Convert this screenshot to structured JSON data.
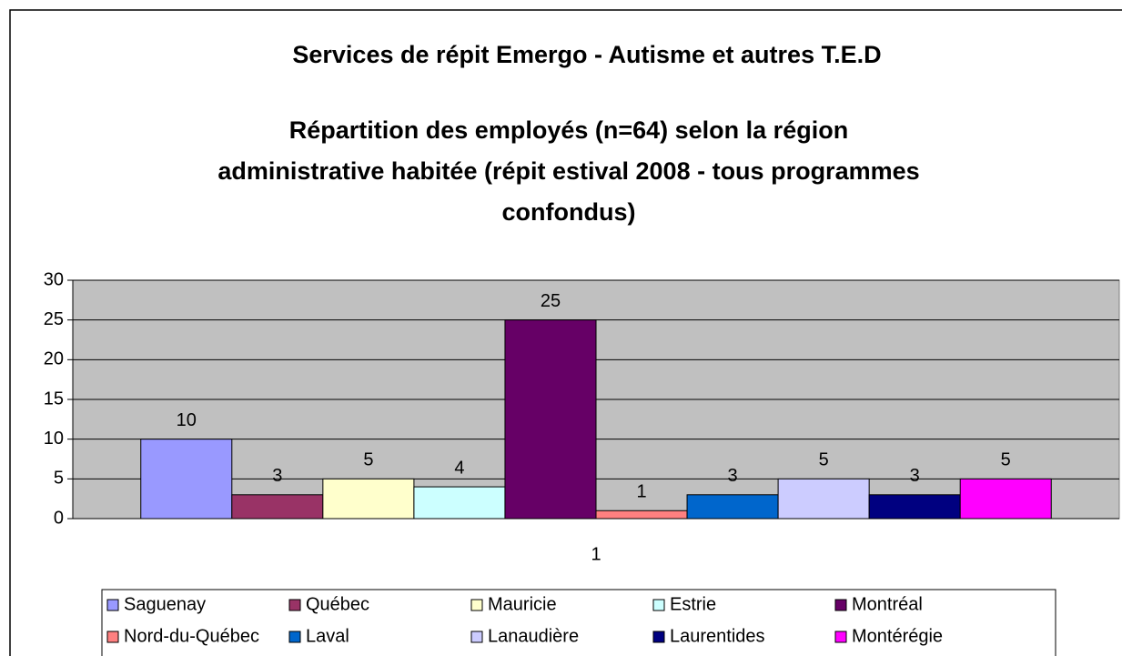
{
  "chart_data": {
    "type": "bar",
    "title": "Services de répit Emergo - Autisme et autres T.E.D",
    "subtitle": [
      "Répartition des employés (n=64) selon la région",
      "administrative habitée (répit estival 2008 - tous programmes",
      "confondus)"
    ],
    "categories": [
      "1"
    ],
    "series": [
      {
        "name": "Saguenay",
        "color": "#9999ff",
        "values": [
          10
        ]
      },
      {
        "name": "Québec",
        "color": "#993366",
        "values": [
          3
        ]
      },
      {
        "name": "Mauricie",
        "color": "#ffffcc",
        "values": [
          5
        ]
      },
      {
        "name": "Estrie",
        "color": "#ccffff",
        "values": [
          4
        ]
      },
      {
        "name": "Montréal",
        "color": "#660066",
        "values": [
          25
        ]
      },
      {
        "name": "Nord-du-Québec",
        "color": "#ff8080",
        "values": [
          1
        ]
      },
      {
        "name": "Laval",
        "color": "#0066cc",
        "values": [
          3
        ]
      },
      {
        "name": "Lanaudière",
        "color": "#ccccff",
        "values": [
          5
        ]
      },
      {
        "name": "Laurentides",
        "color": "#000080",
        "values": [
          3
        ]
      },
      {
        "name": "Montérégie",
        "color": "#ff00ff",
        "values": [
          5
        ]
      }
    ],
    "ylim": [
      0,
      30
    ],
    "yticks": [
      0,
      5,
      10,
      15,
      20,
      25,
      30
    ],
    "grid": true,
    "legend": "bottom"
  }
}
